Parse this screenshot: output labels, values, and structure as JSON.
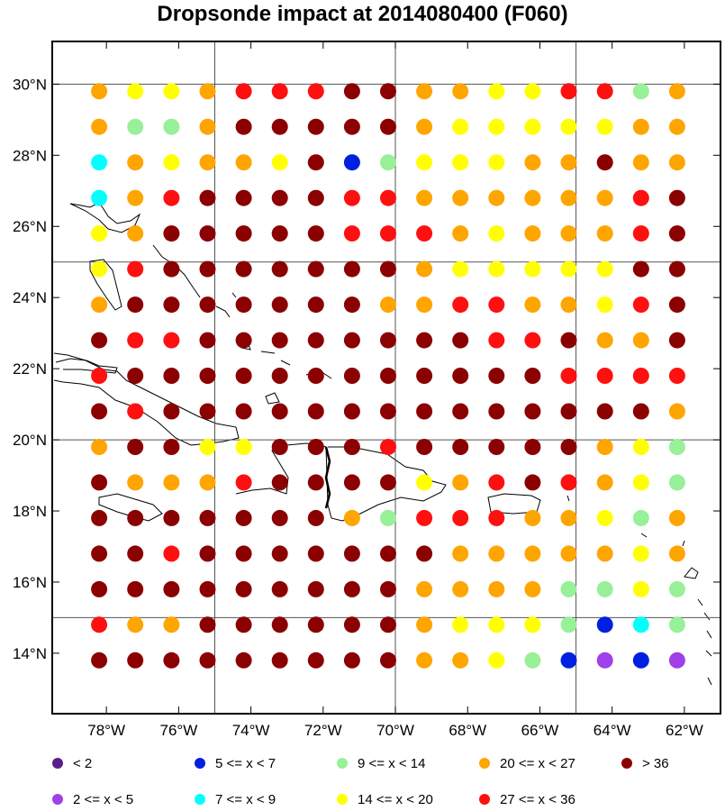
{
  "title": "Dropsonde impact at 2014080400 (F060)",
  "map": {
    "lon_range": [
      -79.5,
      -61.0
    ],
    "lat_range": [
      12.3,
      31.2
    ],
    "lon_ticks": [
      "78°W",
      "76°W",
      "74°W",
      "72°W",
      "70°W",
      "68°W",
      "66°W",
      "64°W",
      "62°W"
    ],
    "lat_ticks": [
      "14°N",
      "16°N",
      "18°N",
      "20°N",
      "22°N",
      "24°N",
      "26°N",
      "28°N",
      "30°N"
    ],
    "gridlines_lon": [
      -75,
      -70,
      -65
    ],
    "gridlines_lat": [
      15,
      20,
      25,
      30
    ]
  },
  "legend": [
    {
      "label": "< 2",
      "color": "#5a1e8c",
      "class": "a"
    },
    {
      "label": "2 <= x < 5",
      "color": "#a040e8",
      "class": "b"
    },
    {
      "label": "5 <= x < 7",
      "color": "#0020e0",
      "class": "c"
    },
    {
      "label": "7 <= x < 9",
      "color": "#00ffff",
      "class": "d"
    },
    {
      "label": "9 <= x < 14",
      "color": "#98f098",
      "class": "e"
    },
    {
      "label": "14 <= x < 20",
      "color": "#ffff00",
      "class": "f"
    },
    {
      "label": "20 <= x < 27",
      "color": "#ffa500",
      "class": "g"
    },
    {
      "label": "27 <= x < 36",
      "color": "#ff1010",
      "class": "h"
    },
    {
      "label": "> 36",
      "color": "#8b0000",
      "class": "i"
    }
  ],
  "chart_data": {
    "type": "scatter",
    "title": "Dropsonde impact at 2014080400 (F060)",
    "x_lons": [
      -78.2,
      -77.2,
      -76.2,
      -75.2,
      -74.2,
      -73.2,
      -72.2,
      -71.2,
      -70.2,
      -69.2,
      -68.2,
      -67.2,
      -66.2,
      -65.2,
      -64.2,
      -63.2,
      -62.2
    ],
    "y_lats": [
      29.8,
      28.8,
      27.8,
      26.8,
      25.8,
      24.8,
      23.8,
      22.8,
      21.8,
      20.8,
      19.8,
      18.8,
      17.8,
      16.8,
      15.8,
      14.8,
      13.8
    ],
    "rows": [
      "gffghhhiiggffhheg",
      "geegiiiiigfffffgg",
      "dgfggficefffggigg",
      "dghiiiihhgggggghi",
      "fgiiiiihhhgfggghi",
      "fhiiiiiiigfffffii",
      "giiiiiiigghhggfhi",
      "ihhiiiiiiiihhiggi",
      "hiiiiiiiiiiiihhhh",
      "ihiiiiiiiiiiiiiig",
      "giiffiiihiiiiigfe",
      "iggghiiiifghihgfe",
      "iiiiiiigehhhggfeg",
      "iihiiiiiiigggggfg",
      "iiiiiiiiiggggeefe",
      "hggiiiiiigfffecde",
      "iiiiiiiiiggfecbcb"
    ]
  }
}
